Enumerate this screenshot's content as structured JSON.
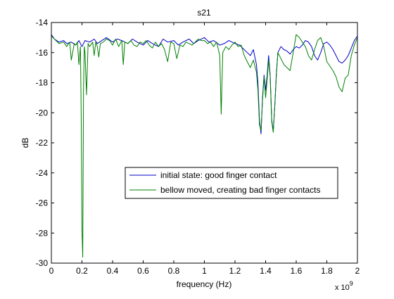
{
  "chart_data": {
    "type": "line",
    "title": "s21",
    "xlabel": "frequency (Hz)",
    "ylabel": "dB",
    "x_exponent_label": "x 10",
    "x_exponent_power": "9",
    "xlim": [
      0,
      2
    ],
    "ylim": [
      -30,
      -14
    ],
    "x_ticks": [
      "0",
      "0.2",
      "0.4",
      "0.6",
      "0.8",
      "1",
      "1.2",
      "1.4",
      "1.6",
      "1.8",
      "2"
    ],
    "y_ticks": [
      "-14",
      "-16",
      "-18",
      "-20",
      "-22",
      "-24",
      "-26",
      "-28",
      "-30"
    ],
    "grid": false,
    "legend_position": "lower-center",
    "series": [
      {
        "name": "initial state: good finger contact",
        "color": "#0000cc",
        "x": [
          0.0,
          0.02,
          0.05,
          0.08,
          0.1,
          0.13,
          0.16,
          0.18,
          0.2,
          0.22,
          0.25,
          0.28,
          0.3,
          0.33,
          0.36,
          0.4,
          0.43,
          0.46,
          0.5,
          0.53,
          0.56,
          0.6,
          0.63,
          0.66,
          0.7,
          0.73,
          0.76,
          0.8,
          0.83,
          0.86,
          0.9,
          0.93,
          0.96,
          1.0,
          1.03,
          1.06,
          1.1,
          1.13,
          1.16,
          1.2,
          1.23,
          1.26,
          1.28,
          1.3,
          1.32,
          1.34,
          1.35,
          1.36,
          1.37,
          1.38,
          1.39,
          1.4,
          1.41,
          1.42,
          1.43,
          1.44,
          1.45,
          1.46,
          1.47,
          1.48,
          1.5,
          1.52,
          1.54,
          1.56,
          1.58,
          1.6,
          1.62,
          1.64,
          1.66,
          1.68,
          1.7,
          1.72,
          1.74,
          1.76,
          1.78,
          1.8,
          1.82,
          1.84,
          1.86,
          1.88,
          1.9,
          1.92,
          1.94,
          1.96,
          1.98,
          2.0
        ],
        "y": [
          -14.8,
          -15.1,
          -15.3,
          -15.2,
          -15.4,
          -15.3,
          -15.5,
          -15.2,
          -15.6,
          -15.2,
          -15.3,
          -15.1,
          -15.4,
          -15.2,
          -15.0,
          -15.3,
          -15.1,
          -15.2,
          -15.4,
          -15.1,
          -15.3,
          -15.5,
          -15.2,
          -15.4,
          -15.6,
          -15.1,
          -15.3,
          -15.2,
          -15.5,
          -15.3,
          -15.1,
          -15.4,
          -15.2,
          -15.0,
          -15.3,
          -15.2,
          -15.5,
          -15.4,
          -15.2,
          -15.4,
          -15.5,
          -15.8,
          -16.0,
          -16.2,
          -15.8,
          -16.8,
          -18.0,
          -20.5,
          -21.4,
          -19.0,
          -17.5,
          -18.5,
          -17.5,
          -16.2,
          -17.5,
          -20.5,
          -21.2,
          -19.5,
          -17.5,
          -16.0,
          -15.6,
          -15.8,
          -15.9,
          -16.1,
          -15.8,
          -15.6,
          -15.7,
          -15.5,
          -15.2,
          -15.3,
          -15.6,
          -16.2,
          -16.5,
          -16.0,
          -15.4,
          -15.3,
          -15.5,
          -15.8,
          -16.2,
          -16.6,
          -16.7,
          -16.5,
          -16.2,
          -15.7,
          -15.2,
          -14.9
        ]
      },
      {
        "name": "bellow moved, creating bad finger contacts",
        "color": "#008000",
        "x": [
          0.0,
          0.02,
          0.05,
          0.08,
          0.1,
          0.12,
          0.13,
          0.15,
          0.16,
          0.17,
          0.18,
          0.19,
          0.195,
          0.2,
          0.205,
          0.21,
          0.215,
          0.22,
          0.23,
          0.24,
          0.25,
          0.27,
          0.28,
          0.29,
          0.3,
          0.31,
          0.32,
          0.34,
          0.36,
          0.38,
          0.4,
          0.42,
          0.44,
          0.46,
          0.47,
          0.48,
          0.5,
          0.52,
          0.54,
          0.56,
          0.58,
          0.6,
          0.62,
          0.64,
          0.66,
          0.68,
          0.7,
          0.72,
          0.74,
          0.76,
          0.78,
          0.8,
          0.82,
          0.84,
          0.86,
          0.88,
          0.9,
          0.92,
          0.94,
          0.96,
          0.98,
          1.0,
          1.02,
          1.04,
          1.06,
          1.08,
          1.1,
          1.11,
          1.12,
          1.14,
          1.16,
          1.18,
          1.2,
          1.22,
          1.24,
          1.26,
          1.28,
          1.3,
          1.32,
          1.34,
          1.35,
          1.36,
          1.37,
          1.38,
          1.39,
          1.4,
          1.41,
          1.42,
          1.43,
          1.44,
          1.45,
          1.46,
          1.47,
          1.48,
          1.5,
          1.52,
          1.54,
          1.56,
          1.58,
          1.6,
          1.62,
          1.64,
          1.66,
          1.68,
          1.7,
          1.72,
          1.74,
          1.76,
          1.78,
          1.8,
          1.82,
          1.84,
          1.86,
          1.88,
          1.9,
          1.92,
          1.94,
          1.96,
          1.98,
          2.0
        ],
        "y": [
          -14.9,
          -15.1,
          -15.4,
          -15.3,
          -15.6,
          -15.3,
          -16.5,
          -15.4,
          -15.5,
          -15.3,
          -16.8,
          -15.6,
          -20.0,
          -27.8,
          -29.6,
          -18.5,
          -15.6,
          -16.0,
          -18.8,
          -15.4,
          -15.6,
          -15.3,
          -16.2,
          -15.3,
          -15.6,
          -16.3,
          -15.4,
          -15.3,
          -15.1,
          -15.2,
          -15.5,
          -15.1,
          -15.6,
          -15.2,
          -16.8,
          -15.3,
          -15.4,
          -15.2,
          -15.5,
          -15.6,
          -15.3,
          -15.4,
          -15.2,
          -15.5,
          -15.7,
          -15.3,
          -15.6,
          -15.4,
          -15.8,
          -16.6,
          -15.3,
          -15.4,
          -16.4,
          -15.5,
          -15.6,
          -15.3,
          -15.4,
          -15.5,
          -15.3,
          -15.1,
          -15.2,
          -15.2,
          -15.4,
          -15.3,
          -15.6,
          -15.3,
          -16.2,
          -20.1,
          -16.0,
          -15.6,
          -15.8,
          -15.5,
          -15.3,
          -15.6,
          -15.5,
          -16.2,
          -16.6,
          -17.0,
          -16.5,
          -17.3,
          -18.5,
          -20.8,
          -21.2,
          -19.2,
          -17.6,
          -19.0,
          -17.8,
          -16.5,
          -17.6,
          -20.6,
          -21.3,
          -19.5,
          -17.6,
          -16.0,
          -16.4,
          -16.8,
          -17.0,
          -17.2,
          -16.0,
          -14.8,
          -15.0,
          -15.3,
          -15.6,
          -16.2,
          -16.5,
          -15.8,
          -15.2,
          -15.0,
          -15.6,
          -16.6,
          -16.9,
          -17.2,
          -17.6,
          -18.3,
          -18.6,
          -17.7,
          -17.5,
          -16.2,
          -15.5,
          -15.0
        ]
      }
    ]
  }
}
